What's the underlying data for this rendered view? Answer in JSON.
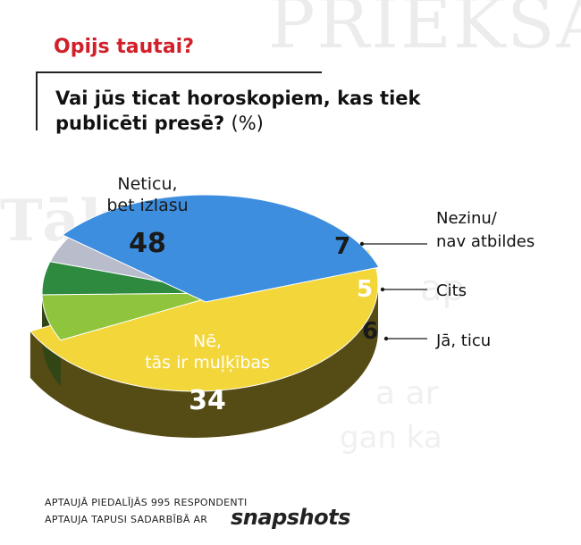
{
  "kicker": "Opijs tautai?",
  "question": "Vai jūs ticat horoskopiem, kas tiek publicēti presē?",
  "unit": "(%)",
  "footer": {
    "line1": "APTAUJĀ PIEDALĪJĀS 995 RESPONDENTI",
    "line2": "APTAUJA TAPUSI SADARBĪBĀ AR",
    "logo": "snapshots"
  },
  "chart_data": {
    "type": "pie",
    "title": "Vai jūs ticat horoskopiem, kas tiek publicēti presē?",
    "unit": "%",
    "slices": [
      {
        "label": "Neticu, bet izlasu",
        "value": 48,
        "color": "#f3d63a"
      },
      {
        "label": "Nezinu/ nav atbildes",
        "value": 7,
        "color": "#8fc43d"
      },
      {
        "label": "Cits",
        "value": 5,
        "color": "#2e8a3e"
      },
      {
        "label": "Jā, ticu",
        "value": 6,
        "color": "#b8bccb"
      },
      {
        "label": "Nē, tās ir muļķības",
        "value": 34,
        "color": "#3d8ede"
      }
    ],
    "inside_labels": [
      {
        "lines": [
          "Neticu,",
          "bet izlasu"
        ]
      },
      {
        "lines": [
          "Nē,",
          "tās ir muļķības"
        ]
      }
    ],
    "outside_labels": [
      {
        "lines": [
          "Nezinu/",
          "nav atbildes"
        ]
      },
      {
        "lines": [
          "Cits"
        ]
      },
      {
        "lines": [
          "Jā, ticu"
        ]
      }
    ]
  }
}
